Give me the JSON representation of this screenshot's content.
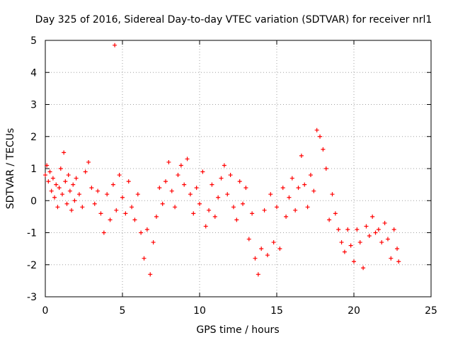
{
  "chart_data": {
    "type": "scatter",
    "title": "Day 325 of 2016, Sidereal Day-to-day VTEC variation (SDTVAR) for receiver nrl1",
    "xlabel": "GPS time / hours",
    "ylabel": "SDTVAR / TECUs",
    "xlim": [
      0,
      25
    ],
    "ylim": [
      -3,
      5
    ],
    "xticks": [
      "0",
      "5",
      "10",
      "15",
      "20",
      "25"
    ],
    "yticks": [
      "-3",
      "-2",
      "-1",
      "0",
      "1",
      "2",
      "3",
      "4",
      "5"
    ],
    "grid": true,
    "marker": "+",
    "color": "#ff0000",
    "series": [
      {
        "name": "nrl1",
        "points": [
          [
            0.0,
            0.8
          ],
          [
            0.1,
            1.1
          ],
          [
            0.2,
            0.6
          ],
          [
            0.3,
            0.9
          ],
          [
            0.4,
            0.3
          ],
          [
            0.5,
            0.7
          ],
          [
            0.6,
            0.1
          ],
          [
            0.7,
            0.5
          ],
          [
            0.8,
            -0.2
          ],
          [
            0.9,
            0.4
          ],
          [
            1.0,
            1.0
          ],
          [
            1.1,
            0.2
          ],
          [
            1.2,
            1.5
          ],
          [
            1.3,
            0.6
          ],
          [
            1.4,
            -0.1
          ],
          [
            1.5,
            0.8
          ],
          [
            1.6,
            0.3
          ],
          [
            1.7,
            -0.3
          ],
          [
            1.8,
            0.5
          ],
          [
            1.9,
            0.0
          ],
          [
            2.0,
            0.7
          ],
          [
            2.2,
            0.2
          ],
          [
            2.4,
            -0.2
          ],
          [
            2.6,
            0.9
          ],
          [
            2.8,
            1.2
          ],
          [
            3.0,
            0.4
          ],
          [
            3.2,
            -0.1
          ],
          [
            3.4,
            0.3
          ],
          [
            3.6,
            -0.4
          ],
          [
            3.8,
            -1.0
          ],
          [
            4.0,
            0.2
          ],
          [
            4.2,
            -0.6
          ],
          [
            4.4,
            0.5
          ],
          [
            4.5,
            4.85
          ],
          [
            4.6,
            -0.3
          ],
          [
            4.8,
            0.8
          ],
          [
            5.0,
            0.1
          ],
          [
            5.2,
            -0.4
          ],
          [
            5.4,
            0.6
          ],
          [
            5.6,
            -0.2
          ],
          [
            5.8,
            -0.6
          ],
          [
            6.0,
            0.2
          ],
          [
            6.2,
            -1.0
          ],
          [
            6.4,
            -1.8
          ],
          [
            6.6,
            -0.9
          ],
          [
            6.8,
            -2.3
          ],
          [
            7.0,
            -1.3
          ],
          [
            7.2,
            -0.5
          ],
          [
            7.4,
            0.4
          ],
          [
            7.6,
            -0.1
          ],
          [
            7.8,
            0.6
          ],
          [
            8.0,
            1.2
          ],
          [
            8.2,
            0.3
          ],
          [
            8.4,
            -0.2
          ],
          [
            8.6,
            0.8
          ],
          [
            8.8,
            1.1
          ],
          [
            9.0,
            0.5
          ],
          [
            9.2,
            1.3
          ],
          [
            9.4,
            0.2
          ],
          [
            9.6,
            -0.4
          ],
          [
            9.8,
            0.4
          ],
          [
            10.0,
            -0.1
          ],
          [
            10.2,
            0.9
          ],
          [
            10.4,
            -0.8
          ],
          [
            10.6,
            -0.3
          ],
          [
            10.8,
            0.5
          ],
          [
            11.0,
            -0.5
          ],
          [
            11.2,
            0.1
          ],
          [
            11.4,
            0.7
          ],
          [
            11.6,
            1.1
          ],
          [
            11.8,
            0.2
          ],
          [
            12.0,
            0.8
          ],
          [
            12.2,
            -0.2
          ],
          [
            12.4,
            -0.6
          ],
          [
            12.6,
            0.6
          ],
          [
            12.8,
            -0.1
          ],
          [
            13.0,
            0.4
          ],
          [
            13.2,
            -1.2
          ],
          [
            13.4,
            -0.4
          ],
          [
            13.6,
            -1.8
          ],
          [
            13.8,
            -2.3
          ],
          [
            14.0,
            -1.5
          ],
          [
            14.2,
            -0.3
          ],
          [
            14.4,
            -1.7
          ],
          [
            14.6,
            0.2
          ],
          [
            14.8,
            -1.3
          ],
          [
            15.0,
            -0.2
          ],
          [
            15.2,
            -1.5
          ],
          [
            15.4,
            0.4
          ],
          [
            15.6,
            -0.5
          ],
          [
            15.8,
            0.1
          ],
          [
            16.0,
            0.7
          ],
          [
            16.2,
            -0.3
          ],
          [
            16.4,
            0.4
          ],
          [
            16.6,
            1.4
          ],
          [
            16.8,
            0.5
          ],
          [
            17.0,
            -0.2
          ],
          [
            17.2,
            0.8
          ],
          [
            17.4,
            0.3
          ],
          [
            17.6,
            2.2
          ],
          [
            17.8,
            2.0
          ],
          [
            18.0,
            1.6
          ],
          [
            18.2,
            1.0
          ],
          [
            18.4,
            -0.6
          ],
          [
            18.6,
            0.2
          ],
          [
            18.8,
            -0.4
          ],
          [
            19.0,
            -0.9
          ],
          [
            19.2,
            -1.3
          ],
          [
            19.4,
            -1.6
          ],
          [
            19.6,
            -0.9
          ],
          [
            19.8,
            -1.4
          ],
          [
            20.0,
            -1.9
          ],
          [
            20.2,
            -0.9
          ],
          [
            20.4,
            -1.3
          ],
          [
            20.6,
            -2.1
          ],
          [
            20.8,
            -0.8
          ],
          [
            21.0,
            -1.1
          ],
          [
            21.2,
            -0.5
          ],
          [
            21.4,
            -1.0
          ],
          [
            21.6,
            -0.9
          ],
          [
            21.8,
            -1.3
          ],
          [
            22.0,
            -0.7
          ],
          [
            22.2,
            -1.2
          ],
          [
            22.4,
            -1.8
          ],
          [
            22.6,
            -0.9
          ],
          [
            22.8,
            -1.5
          ],
          [
            22.9,
            -1.9
          ]
        ]
      }
    ]
  }
}
